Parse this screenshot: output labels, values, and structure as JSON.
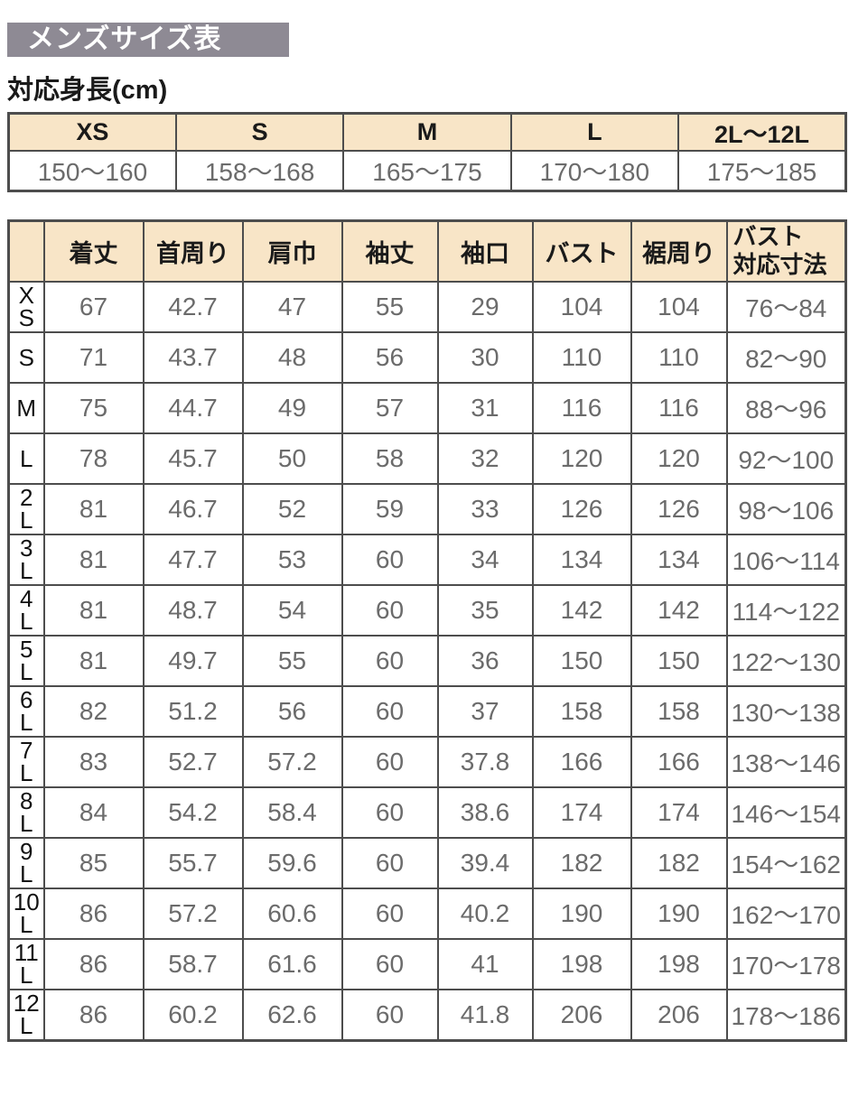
{
  "page": {
    "title": "メンズサイズ表",
    "subtitle": "対応身長(cm)"
  },
  "colors": {
    "title_bar_bg": "#8e8a94",
    "title_text": "#ffffff",
    "table_header_bg": "#f8e5c7",
    "border": "#4d4d4d",
    "header_text": "#1a1a1a",
    "value_text": "#6b6b6b"
  },
  "height_table": {
    "headers": [
      "XS",
      "S",
      "M",
      "L",
      "2L～12L"
    ],
    "values": [
      "150～160",
      "158～168",
      "165～175",
      "170～180",
      "175～185"
    ]
  },
  "size_table": {
    "columns": [
      "着丈",
      "首周り",
      "肩巾",
      "袖丈",
      "袖口",
      "バスト",
      "裾周り",
      "バスト\n対応寸法"
    ],
    "rows": [
      {
        "size": "XS",
        "size_display": "X\nS",
        "values": [
          "67",
          "42.7",
          "47",
          "55",
          "29",
          "104",
          "104",
          "76～84"
        ]
      },
      {
        "size": "S",
        "size_display": "S",
        "values": [
          "71",
          "43.7",
          "48",
          "56",
          "30",
          "110",
          "110",
          "82～90"
        ]
      },
      {
        "size": "M",
        "size_display": "M",
        "values": [
          "75",
          "44.7",
          "49",
          "57",
          "31",
          "116",
          "116",
          "88～96"
        ]
      },
      {
        "size": "L",
        "size_display": "L",
        "values": [
          "78",
          "45.7",
          "50",
          "58",
          "32",
          "120",
          "120",
          "92～100"
        ]
      },
      {
        "size": "2L",
        "size_display": "2\nL",
        "values": [
          "81",
          "46.7",
          "52",
          "59",
          "33",
          "126",
          "126",
          "98～106"
        ]
      },
      {
        "size": "3L",
        "size_display": "3\nL",
        "values": [
          "81",
          "47.7",
          "53",
          "60",
          "34",
          "134",
          "134",
          "106～114"
        ]
      },
      {
        "size": "4L",
        "size_display": "4\nL",
        "values": [
          "81",
          "48.7",
          "54",
          "60",
          "35",
          "142",
          "142",
          "114～122"
        ]
      },
      {
        "size": "5L",
        "size_display": "5\nL",
        "values": [
          "81",
          "49.7",
          "55",
          "60",
          "36",
          "150",
          "150",
          "122～130"
        ]
      },
      {
        "size": "6L",
        "size_display": "6\nL",
        "values": [
          "82",
          "51.2",
          "56",
          "60",
          "37",
          "158",
          "158",
          "130～138"
        ]
      },
      {
        "size": "7L",
        "size_display": "7\nL",
        "values": [
          "83",
          "52.7",
          "57.2",
          "60",
          "37.8",
          "166",
          "166",
          "138～146"
        ]
      },
      {
        "size": "8L",
        "size_display": "8\nL",
        "values": [
          "84",
          "54.2",
          "58.4",
          "60",
          "38.6",
          "174",
          "174",
          "146～154"
        ]
      },
      {
        "size": "9L",
        "size_display": "9\nL",
        "values": [
          "85",
          "55.7",
          "59.6",
          "60",
          "39.4",
          "182",
          "182",
          "154～162"
        ]
      },
      {
        "size": "10L",
        "size_display": "10\nL",
        "values": [
          "86",
          "57.2",
          "60.6",
          "60",
          "40.2",
          "190",
          "190",
          "162～170"
        ]
      },
      {
        "size": "11L",
        "size_display": "11\nL",
        "values": [
          "86",
          "58.7",
          "61.6",
          "60",
          "41",
          "198",
          "198",
          "170～178"
        ]
      },
      {
        "size": "12L",
        "size_display": "12\nL",
        "values": [
          "86",
          "60.2",
          "62.6",
          "60",
          "41.8",
          "206",
          "206",
          "178～186"
        ]
      }
    ]
  }
}
